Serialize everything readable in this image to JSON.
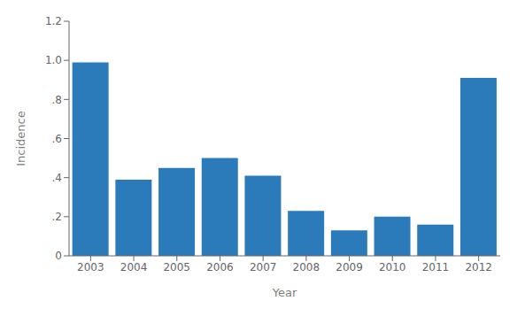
{
  "chart_data": {
    "type": "bar",
    "xlabel": "Year",
    "ylabel": "Incidence",
    "categories": [
      "2003",
      "2004",
      "2005",
      "2006",
      "2007",
      "2008",
      "2009",
      "2010",
      "2011",
      "2012"
    ],
    "values": [
      0.99,
      0.39,
      0.45,
      0.5,
      0.41,
      0.23,
      0.13,
      0.2,
      0.16,
      0.91
    ],
    "color": "#2b7bba",
    "ylim": [
      0,
      1.2
    ],
    "yticks": [
      0,
      {
        "value": 0.2,
        "label": ".2"
      },
      {
        "value": 0.4,
        "label": ".4"
      },
      {
        "value": 0.6,
        "label": ".6"
      },
      {
        "value": 0.8,
        "label": ".8"
      },
      {
        "value": 1.0,
        "label": "1.0"
      },
      1.2
    ],
    "grid": false
  }
}
